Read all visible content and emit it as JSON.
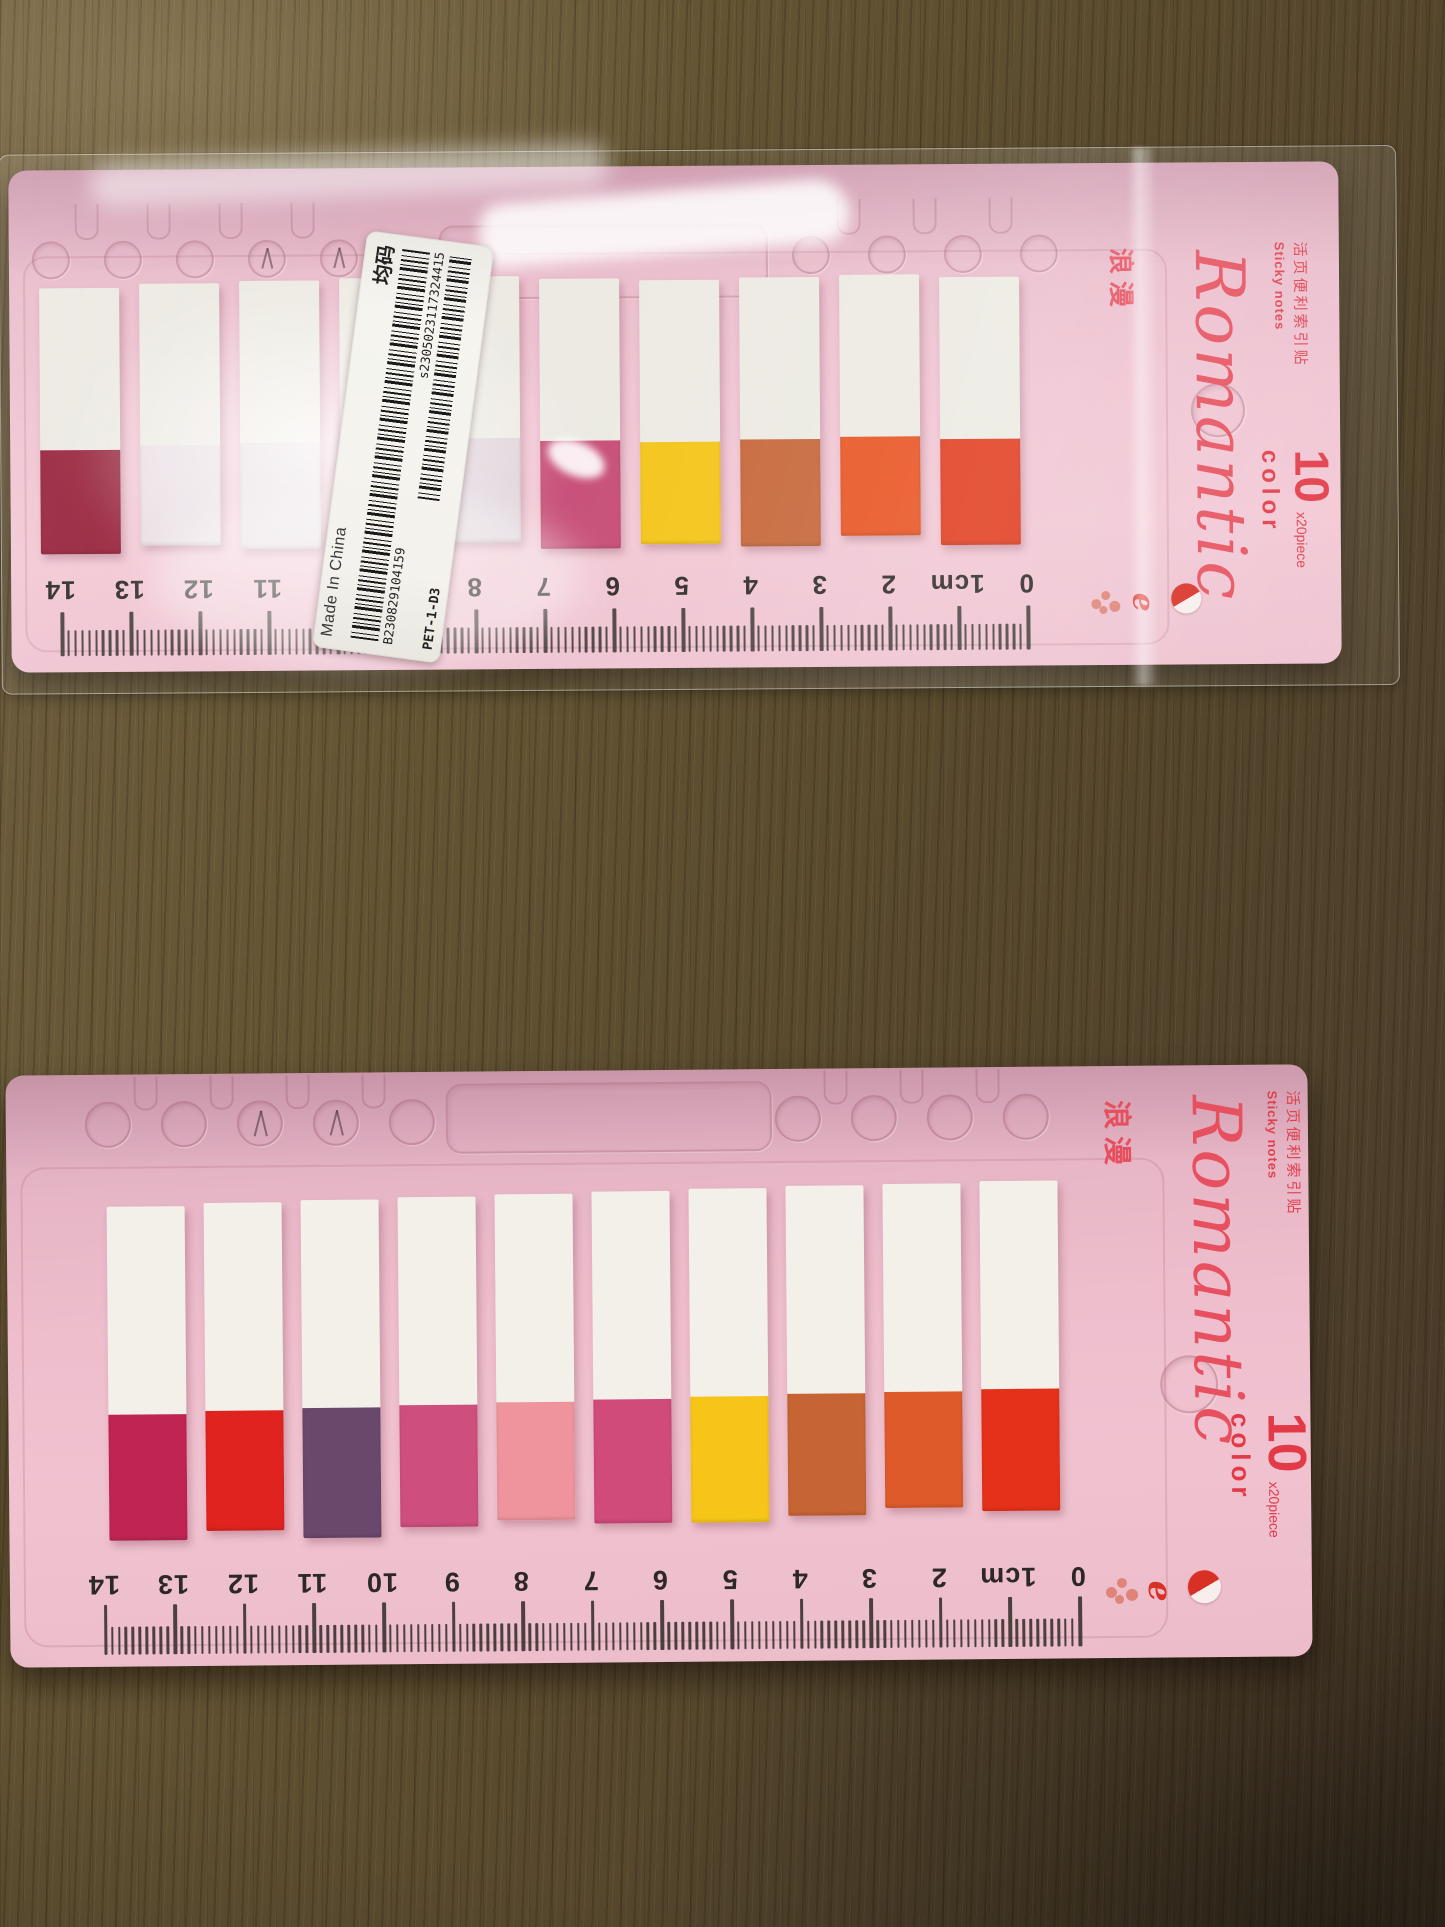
{
  "photo": {
    "description": "Two packs of Romantic loose-leaf index sticky tabs lying on a dark wooden desk, top pack still in a clear plastic wrapper with a barcode sticker"
  },
  "branding": {
    "script_name": "Romantic",
    "cn_name": "浪漫",
    "product_cn": "活页便利索引贴",
    "product_en": "Sticky notes",
    "count": "10",
    "count_unit": "color",
    "piece": "x20piece",
    "logo_glyph": "e"
  },
  "barcode_sticker": {
    "made_in": "Made In China",
    "size_cn": "均码",
    "model": "PET-1-D3",
    "serial1": "B230829104159",
    "serial2": "s2305023117324415"
  },
  "ruler": {
    "labels": [
      "14",
      "13",
      "12",
      "11",
      "10",
      "9",
      "8",
      "7",
      "6",
      "5",
      "4",
      "3",
      "2",
      "1cm",
      "0"
    ]
  },
  "top_pack": {
    "tab_colors": [
      {
        "name": "dark-wine",
        "color": "#96203a"
      },
      {
        "name": "washed-white-1",
        "color": "#e9dde2"
      },
      {
        "name": "washed-white-2",
        "color": "#e5dade"
      },
      {
        "name": "washed-white-3",
        "color": "#e2d6da"
      },
      {
        "name": "washed-white-4",
        "color": "#ded2d8"
      },
      {
        "name": "magenta",
        "color": "#c64a74"
      },
      {
        "name": "golden-yellow",
        "color": "#f5c415"
      },
      {
        "name": "terracotta",
        "color": "#c66436"
      },
      {
        "name": "orange",
        "color": "#e8521f"
      },
      {
        "name": "red-orange",
        "color": "#e13a1c"
      }
    ]
  },
  "bottom_pack": {
    "tab_colors": [
      {
        "name": "deep-rose",
        "color": "#c02453"
      },
      {
        "name": "red",
        "color": "#e0231f"
      },
      {
        "name": "plum-purple",
        "color": "#6a486c"
      },
      {
        "name": "magenta-pink",
        "color": "#ce4e7e"
      },
      {
        "name": "salmon-pink",
        "color": "#ef949c"
      },
      {
        "name": "deep-pink",
        "color": "#d04a7a"
      },
      {
        "name": "golden-yellow",
        "color": "#f6c517"
      },
      {
        "name": "terracotta",
        "color": "#c66434"
      },
      {
        "name": "orange",
        "color": "#de5a2a"
      },
      {
        "name": "red-orange",
        "color": "#e53119"
      }
    ]
  },
  "palette": {
    "accent_red": "#e7505e",
    "ruler_ink": "#2c2826",
    "card_pink": "#f0c4d2",
    "wood_brown": "#5a4b31"
  }
}
